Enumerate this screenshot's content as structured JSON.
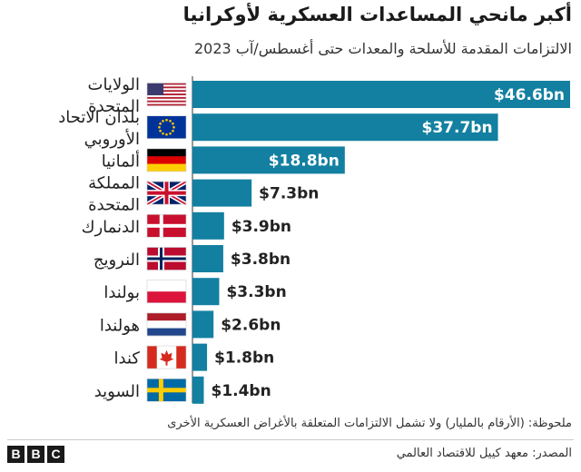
{
  "chart_data": {
    "type": "bar",
    "orientation": "horizontal",
    "title": "أكبر مانحي المساعدات العسكرية لأوكرانيا",
    "subtitle": "الالتزامات المقدمة للأسلحة والمعدات حتى أغسطس/آب 2023",
    "categories": [
      "الولايات المتحدة",
      "بلدان الاتحاد الأوروبي",
      "ألمانيا",
      "المملكة المتحدة",
      "الدنمارك",
      "النرويج",
      "بولندا",
      "هولندا",
      "كندا",
      "السويد"
    ],
    "values": [
      46.6,
      37.7,
      18.8,
      7.3,
      3.9,
      3.8,
      3.3,
      2.6,
      1.8,
      1.4
    ],
    "value_labels": [
      "$46.6bn",
      "$37.7bn",
      "$18.8bn",
      "$7.3bn",
      "$3.9bn",
      "$3.8bn",
      "$3.3bn",
      "$2.6bn",
      "$1.8bn",
      "$1.4bn"
    ],
    "flag_icons": [
      "us-flag-icon",
      "eu-flag-icon",
      "germany-flag-icon",
      "uk-flag-icon",
      "denmark-flag-icon",
      "norway-flag-icon",
      "poland-flag-icon",
      "netherlands-flag-icon",
      "canada-flag-icon",
      "sweden-flag-icon"
    ],
    "xlim": [
      0,
      46.6
    ],
    "bar_color": "#1380a1",
    "grid": false,
    "legend": "none"
  },
  "note": "ملحوظة: (الأرقام بالمليار) ولا تشمل الالتزامات المتعلقة بالأغراض العسكرية الأخرى",
  "source": "المصدر: معهد كييل للاقتصاد العالمي",
  "logo": {
    "letters": [
      "B",
      "B",
      "C"
    ]
  }
}
